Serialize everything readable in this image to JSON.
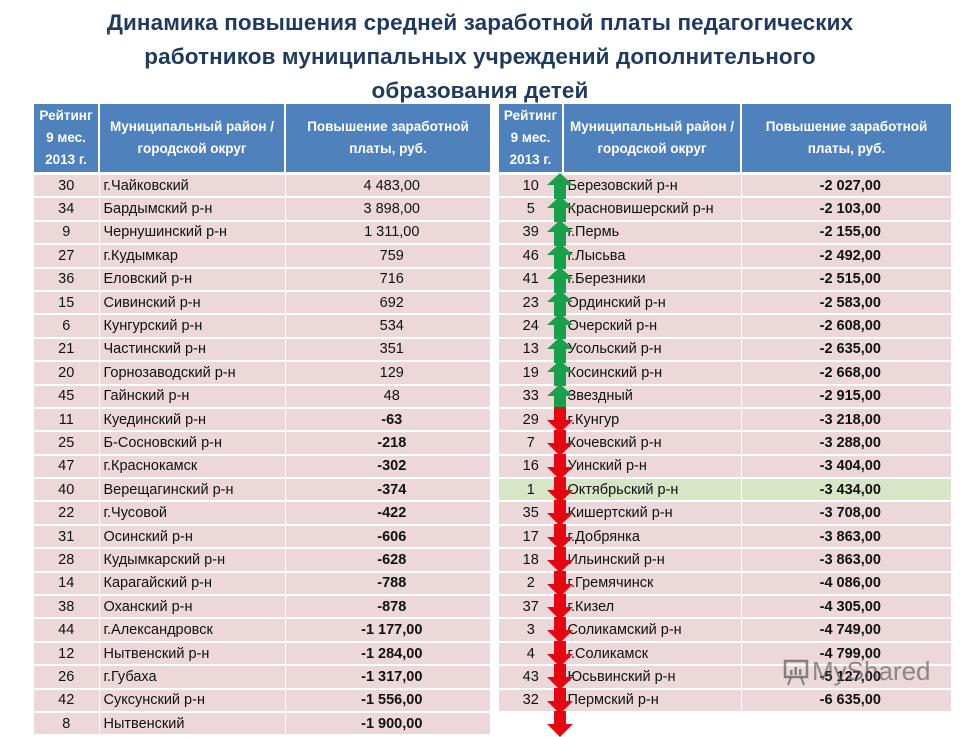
{
  "title": {
    "line1": "Динамика  повышения средней заработной платы педагогических",
    "line2": "работников муниципальных учреждений дополнительного",
    "line3": "образования детей"
  },
  "headers": {
    "rank": "Рейтинг 9 мес. 2013 г.",
    "district": "Муниципальный район / городской округ",
    "increase": "Повышение заработной платы, руб."
  },
  "colors": {
    "header_bg": "#4f81bd",
    "row_bg": "#ecd8d8",
    "highlight_row_bg": "#d8e6c8",
    "arrow_up": "#1aa04a",
    "arrow_down": "#e30613",
    "title": "#1f3a5c"
  },
  "left_table": [
    {
      "rank": "30",
      "district": "г.Чайковский",
      "increase": "4 483,00",
      "trend": "up"
    },
    {
      "rank": "34",
      "district": "Бардымский р-н",
      "increase": "3 898,00",
      "trend": "up"
    },
    {
      "rank": "9",
      "district": "Чернушинский р-н",
      "increase": "1 311,00",
      "trend": "up"
    },
    {
      "rank": "27",
      "district": "г.Кудымкар",
      "increase": "759",
      "trend": "up"
    },
    {
      "rank": "36",
      "district": "Еловский р-н",
      "increase": "716",
      "trend": "up"
    },
    {
      "rank": "15",
      "district": "Сивинский р-н",
      "increase": "692",
      "trend": "up"
    },
    {
      "rank": "6",
      "district": "Кунгурский р-н",
      "increase": "534",
      "trend": "up"
    },
    {
      "rank": "21",
      "district": "Частинский р-н",
      "increase": "351",
      "trend": "up"
    },
    {
      "rank": "20",
      "district": "Горнозаводский р-н",
      "increase": "129",
      "trend": "up"
    },
    {
      "rank": "45",
      "district": "Гайнский р-н",
      "increase": "48",
      "trend": "up"
    },
    {
      "rank": "11",
      "district": "Куединский р-н",
      "increase": "-63",
      "trend": "down"
    },
    {
      "rank": "25",
      "district": "Б-Сосновский р-н",
      "increase": "-218",
      "trend": "down"
    },
    {
      "rank": "47",
      "district": "г.Краснокамск",
      "increase": "-302",
      "trend": "down"
    },
    {
      "rank": "40",
      "district": "Верещагинский р-н",
      "increase": "-374",
      "trend": "down"
    },
    {
      "rank": "22",
      "district": "г.Чусовой",
      "increase": "-422",
      "trend": "down"
    },
    {
      "rank": "31",
      "district": "Осинский р-н",
      "increase": "-606",
      "trend": "down"
    },
    {
      "rank": "28",
      "district": "Кудымкарский р-н",
      "increase": "-628",
      "trend": "down"
    },
    {
      "rank": "14",
      "district": "Карагайский р-н",
      "increase": "-788",
      "trend": "down"
    },
    {
      "rank": "38",
      "district": "Оханский р-н",
      "increase": "-878",
      "trend": "down"
    },
    {
      "rank": "44",
      "district": "г.Александровск",
      "increase": "-1 177,00",
      "trend": "down"
    },
    {
      "rank": "12",
      "district": "Нытвенский р-н",
      "increase": "-1 284,00",
      "trend": "down"
    },
    {
      "rank": "26",
      "district": "г.Губаха",
      "increase": "-1 317,00",
      "trend": "down"
    },
    {
      "rank": "42",
      "district": "Суксунский р-н",
      "increase": "-1 556,00",
      "trend": "down"
    },
    {
      "rank": "8",
      "district": "Нытвенский",
      "increase": "-1 900,00",
      "trend": "down"
    }
  ],
  "right_table": [
    {
      "rank": "10",
      "district": "Березовский р-н",
      "increase": "-2 027,00",
      "trend": "down"
    },
    {
      "rank": "5",
      "district": "Красновишерский р-н",
      "increase": "-2 103,00",
      "trend": "down"
    },
    {
      "rank": "39",
      "district": "г.Пермь",
      "increase": "-2 155,00",
      "trend": "down"
    },
    {
      "rank": "46",
      "district": "г.Лысьва",
      "increase": "-2 492,00",
      "trend": "down"
    },
    {
      "rank": "41",
      "district": "г.Березники",
      "increase": "-2 515,00",
      "trend": "down"
    },
    {
      "rank": "23",
      "district": "Ординский р-н",
      "increase": "-2 583,00",
      "trend": "down"
    },
    {
      "rank": "24",
      "district": "Очерский р-н",
      "increase": "-2 608,00",
      "trend": "down"
    },
    {
      "rank": "13",
      "district": "Усольский р-н",
      "increase": "-2 635,00",
      "trend": "down"
    },
    {
      "rank": "19",
      "district": "Косинский р-н",
      "increase": "-2 668,00",
      "trend": "down"
    },
    {
      "rank": "33",
      "district": "Звездный",
      "increase": "-2 915,00",
      "trend": "down"
    },
    {
      "rank": "29",
      "district": "г.Кунгур",
      "increase": "-3 218,00",
      "trend": "down"
    },
    {
      "rank": "7",
      "district": "Кочевский р-н",
      "increase": "-3 288,00",
      "trend": "down"
    },
    {
      "rank": "16",
      "district": "Уинский р-н",
      "increase": "-3 404,00",
      "trend": "down"
    },
    {
      "rank": "1",
      "district": "Октябрьский р-н",
      "increase": "-3 434,00",
      "trend": "down",
      "highlight": true
    },
    {
      "rank": "35",
      "district": "Кишертский р-н",
      "increase": "-3 708,00",
      "trend": "down"
    },
    {
      "rank": "17",
      "district": "г.Добрянка",
      "increase": "-3 863,00",
      "trend": "down"
    },
    {
      "rank": "18",
      "district": "Ильинский р-н",
      "increase": "-3 863,00",
      "trend": "down"
    },
    {
      "rank": "2",
      "district": "г.Гремячинск",
      "increase": "-4 086,00",
      "trend": "down"
    },
    {
      "rank": "37",
      "district": "г.Кизел",
      "increase": "-4 305,00",
      "trend": "down"
    },
    {
      "rank": "3",
      "district": "Соликамский р-н",
      "increase": "-4 749,00",
      "trend": "down"
    },
    {
      "rank": "4",
      "district": "г.Соликамск",
      "increase": "-4 799,00",
      "trend": "down"
    },
    {
      "rank": "43",
      "district": "Юсьвинский р-н",
      "increase": "-5 127,00",
      "trend": "down"
    },
    {
      "rank": "32",
      "district": "Пермский р-н",
      "increase": "-6 635,00",
      "trend": "down"
    }
  ],
  "watermark": {
    "text": "MyShared"
  }
}
